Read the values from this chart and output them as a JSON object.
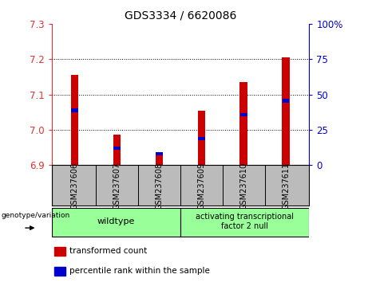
{
  "title": "GDS3334 / 6620086",
  "samples": [
    "GSM237606",
    "GSM237607",
    "GSM237608",
    "GSM237609",
    "GSM237610",
    "GSM237611"
  ],
  "red_values": [
    7.155,
    6.985,
    6.935,
    7.055,
    7.135,
    7.205
  ],
  "blue_values": [
    7.055,
    6.948,
    6.932,
    6.975,
    7.042,
    7.082
  ],
  "y_min": 6.9,
  "y_max": 7.3,
  "y_ticks": [
    6.9,
    7.0,
    7.1,
    7.2,
    7.3
  ],
  "y2_ticks": [
    0,
    25,
    50,
    75,
    100
  ],
  "y2_labels": [
    "0",
    "25",
    "50",
    "75",
    "100%"
  ],
  "bar_color": "#cc0000",
  "blue_color": "#0000cc",
  "bar_width": 0.18,
  "axis_color_left": "#dd3333",
  "axis_color_right": "#0000cc",
  "background_color": "#ffffff",
  "plot_bg_color": "#ffffff",
  "tick_bg_color": "#bbbbbb",
  "group_color": "#99ff99",
  "legend_items": [
    {
      "label": "transformed count",
      "color": "#cc0000"
    },
    {
      "label": "percentile rank within the sample",
      "color": "#0000cc"
    }
  ]
}
